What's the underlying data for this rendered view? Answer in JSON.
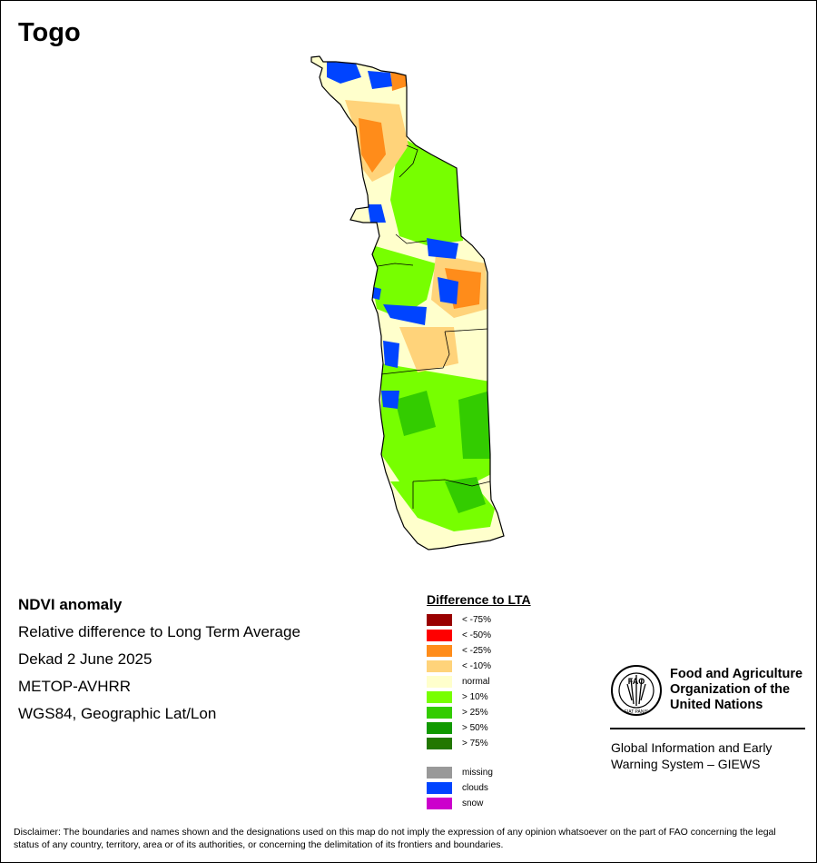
{
  "title": "Togo",
  "info": {
    "heading": "NDVI anomaly",
    "line1": "Relative difference to Long Term Average",
    "line2": "Dekad 2 June 2025",
    "line3": "METOP-AVHRR",
    "line4": "WGS84, Geographic Lat/Lon"
  },
  "legend": {
    "title": "Difference to LTA",
    "items": [
      {
        "label": "< -75%",
        "color": "#990000"
      },
      {
        "label": "< -50%",
        "color": "#ff0000"
      },
      {
        "label": "< -25%",
        "color": "#ff8c1a"
      },
      {
        "label": "< -10%",
        "color": "#ffd37a"
      },
      {
        "label": "normal",
        "color": "#ffffcc"
      },
      {
        "label": "> 10%",
        "color": "#77ff00"
      },
      {
        "label": "> 25%",
        "color": "#33cc00"
      },
      {
        "label": "> 50%",
        "color": "#119900"
      },
      {
        "label": "> 75%",
        "color": "#227700"
      }
    ],
    "extra": [
      {
        "label": "missing",
        "color": "#999999"
      },
      {
        "label": "clouds",
        "color": "#0044ff"
      },
      {
        "label": "snow",
        "color": "#cc00cc"
      }
    ]
  },
  "fao": {
    "logo_text_top": "FAO",
    "logo_text_bottom": "FIAT PANIS",
    "name_line1": "Food and Agriculture",
    "name_line2": "Organization of the",
    "name_line3": "United Nations",
    "giews_line1": "Global Information and Early",
    "giews_line2": "Warning System – GIEWS"
  },
  "disclaimer": "Disclaimer: The boundaries and names shown and the designations used on this map do not imply the expression of any opinion whatsoever on the part of FAO concerning the legal status of any country, territory, area or of its authorities, or concerning the delimitation of its frontiers and boundaries."
}
